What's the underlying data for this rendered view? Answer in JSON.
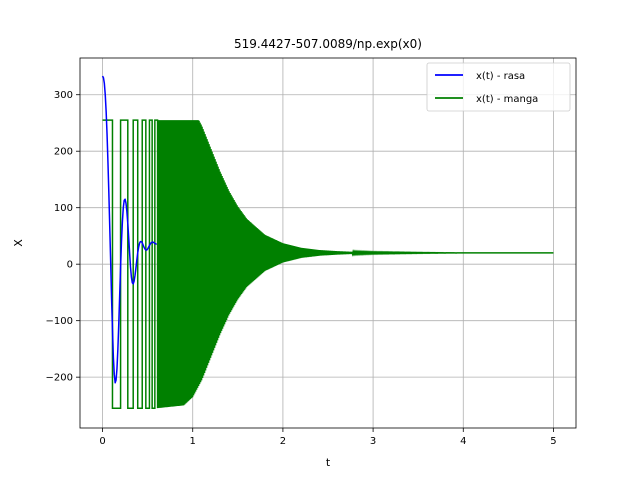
{
  "chart_data": {
    "type": "line",
    "title": "519.4427-507.0089/np.exp(x0)",
    "xlabel": "t",
    "ylabel": "X",
    "xlim": [
      -0.25,
      5.25
    ],
    "ylim": [
      -290,
      365
    ],
    "xticks": [
      0,
      1,
      2,
      3,
      4,
      5
    ],
    "xtick_labels": [
      "0",
      "1",
      "2",
      "3",
      "4",
      "5"
    ],
    "yticks": [
      -200,
      -100,
      0,
      100,
      200,
      300
    ],
    "ytick_labels": [
      "−200",
      "−100",
      "0",
      "100",
      "200",
      "300"
    ],
    "grid": true,
    "legend_position": "top-right",
    "series": [
      {
        "name": "x(t) - rasa",
        "color": "#0000ff",
        "x": [
          0.0,
          0.01,
          0.02,
          0.03,
          0.04,
          0.05,
          0.06,
          0.07,
          0.08,
          0.09,
          0.1,
          0.11,
          0.12,
          0.13,
          0.14,
          0.15,
          0.16,
          0.17,
          0.18,
          0.19,
          0.2,
          0.21,
          0.22,
          0.23,
          0.24,
          0.25,
          0.26,
          0.27,
          0.28,
          0.29,
          0.3,
          0.31,
          0.32,
          0.33,
          0.34,
          0.35,
          0.36,
          0.37,
          0.38,
          0.39,
          0.4,
          0.41,
          0.42,
          0.43,
          0.44,
          0.45,
          0.46,
          0.47,
          0.48,
          0.49,
          0.5,
          0.51,
          0.52,
          0.53,
          0.54,
          0.55,
          0.56,
          0.57,
          0.58,
          0.59,
          0.6
        ],
        "y": [
          333,
          330,
          320,
          300,
          270,
          230,
          180,
          125,
          65,
          5,
          -60,
          -115,
          -165,
          -195,
          -210,
          -205,
          -185,
          -150,
          -105,
          -55,
          -5,
          40,
          75,
          100,
          113,
          115,
          108,
          93,
          72,
          47,
          20,
          -5,
          -23,
          -33,
          -35,
          -30,
          -20,
          -7,
          7,
          20,
          30,
          37,
          40,
          40,
          38,
          34,
          30,
          27,
          25,
          25,
          27,
          30,
          33,
          36,
          38,
          39,
          39,
          38,
          37,
          36,
          35
        ]
      },
      {
        "name": "x(t) - manga",
        "color": "#008000",
        "saturation": 255,
        "final_value": 20,
        "t_start": 0,
        "t_end": 5,
        "envelope": {
          "t": [
            0.0,
            0.6,
            0.9,
            1.0,
            1.1,
            1.2,
            1.3,
            1.4,
            1.5,
            1.6,
            1.8,
            2.0,
            2.2,
            2.4,
            2.6,
            2.8,
            3.0,
            3.5,
            4.0,
            5.0
          ],
          "amplitude": [
            275,
            275,
            270,
            255,
            225,
            185,
            145,
            110,
            82,
            60,
            32,
            17,
            9,
            5,
            3,
            1.5,
            1,
            0.5,
            0,
            0
          ]
        },
        "switch_times": [
          0.0,
          0.11,
          0.2,
          0.28,
          0.34,
          0.39,
          0.44,
          0.48,
          0.52,
          0.55,
          0.58,
          0.61
        ]
      }
    ]
  }
}
